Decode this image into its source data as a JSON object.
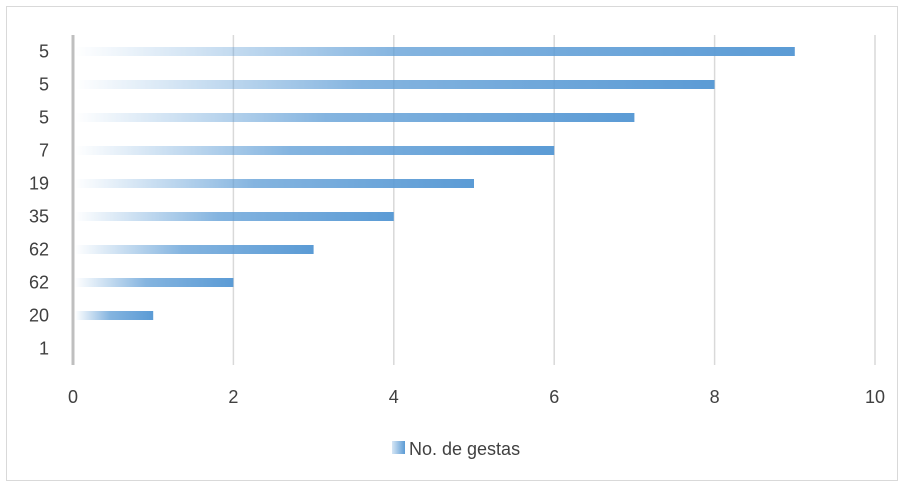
{
  "chart_data": {
    "type": "bar",
    "orientation": "horizontal",
    "categories": [
      "5",
      "5",
      "5",
      "7",
      "19",
      "35",
      "62",
      "62",
      "20",
      "1"
    ],
    "series": [
      {
        "name": "No. de gestas",
        "values": [
          9,
          8,
          7,
          6,
          5,
          4,
          3,
          2,
          1,
          0
        ],
        "color": "#5B9BD5"
      }
    ],
    "x_ticks": [
      "0",
      "2",
      "4",
      "6",
      "8",
      "10"
    ],
    "xlim": [
      0,
      10
    ],
    "grid": true,
    "legend_position": "bottom",
    "bar_fill": "gradient-left-transparent-to-right-solid"
  }
}
